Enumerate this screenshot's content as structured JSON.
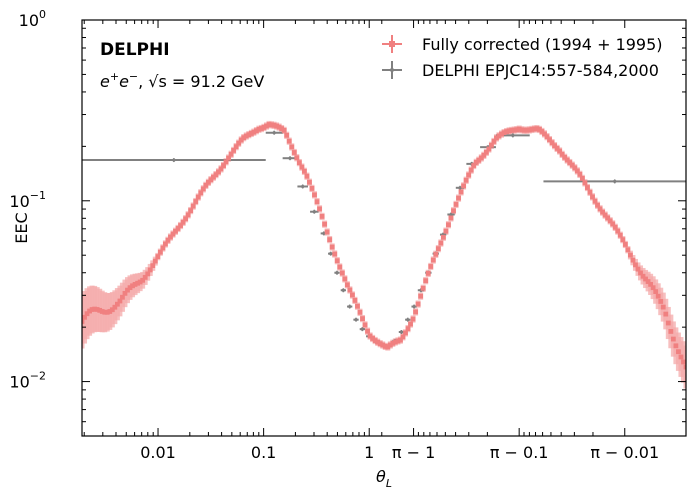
{
  "chart_data": {
    "type": "scatter",
    "xlabel": "θL",
    "ylabel": "EEC",
    "xscale": "symmetric-log about π/2 (θ below 1, π−θ above)",
    "ylim": [
      0.005,
      1
    ],
    "yscale": "log",
    "y_ticks": [
      {
        "value": 0.01,
        "base": "10",
        "exp": "−2"
      },
      {
        "value": 0.1,
        "base": "10",
        "exp": "−1"
      },
      {
        "value": 1,
        "base": "10",
        "exp": "0"
      }
    ],
    "x_ticks": [
      {
        "u": -2,
        "label": "0.01"
      },
      {
        "u": -1,
        "label": "0.1"
      },
      {
        "u": 0,
        "label": "1"
      },
      {
        "u": 0.42,
        "label": "π − 1"
      },
      {
        "u": 1.42,
        "label": "π − 0.1"
      },
      {
        "u": 2.42,
        "label": "π − 0.01"
      }
    ],
    "annotations": {
      "experiment": "DELPHI",
      "process_prefix": "e",
      "process_sqrt": "√s",
      "process_suffix": " = 91.2 GeV"
    },
    "legend": {
      "position": "top-right",
      "entries": [
        "Fully corrected (1994 + 1995)",
        "DELPHI EPJC14:557-584,2000"
      ]
    },
    "series": [
      {
        "name": "Fully corrected (1994 + 1995)",
        "color": "#f08080",
        "band_color": "#f4aaaa",
        "shape_u": [
          -2.72,
          -2.55,
          -2.35,
          -2.15,
          -1.95,
          -1.75,
          -1.55,
          -1.35,
          -1.2,
          -1.05,
          -0.95,
          -0.8,
          -0.6,
          -0.4,
          -0.2,
          0.0,
          0.17,
          0.3,
          0.42,
          0.6,
          0.8,
          1.0,
          1.2,
          1.42,
          1.6,
          1.8,
          2.0,
          2.2,
          2.42,
          2.6,
          2.8,
          3.0
        ],
        "shape_y": [
          0.0215,
          0.0245,
          0.028,
          0.037,
          0.054,
          0.08,
          0.118,
          0.17,
          0.215,
          0.255,
          0.265,
          0.24,
          0.142,
          0.068,
          0.033,
          0.0185,
          0.0151,
          0.017,
          0.023,
          0.045,
          0.09,
          0.16,
          0.22,
          0.255,
          0.245,
          0.195,
          0.135,
          0.09,
          0.058,
          0.038,
          0.025,
          0.0115
        ],
        "n_points": 240,
        "u_range": [
          -2.72,
          3.0
        ]
      },
      {
        "name": "DELPHI EPJC14:557-584,2000",
        "color": "#808080",
        "points": [
          {
            "x0": -2.72,
            "x1": -0.98,
            "y": 0.168
          },
          {
            "x0": -0.98,
            "x1": -0.82,
            "y": 0.238
          },
          {
            "x0": -0.82,
            "x1": -0.68,
            "y": 0.172
          },
          {
            "x0": -0.68,
            "x1": -0.58,
            "y": 0.12
          },
          {
            "x0": -0.56,
            "x1": -0.48,
            "y": 0.087
          },
          {
            "x0": -0.46,
            "x1": -0.4,
            "y": 0.066
          },
          {
            "x0": -0.39,
            "x1": -0.34,
            "y": 0.051
          },
          {
            "x0": -0.33,
            "x1": -0.28,
            "y": 0.04
          },
          {
            "x0": -0.27,
            "x1": -0.22,
            "y": 0.032
          },
          {
            "x0": -0.21,
            "x1": -0.16,
            "y": 0.026
          },
          {
            "x0": -0.15,
            "x1": -0.1,
            "y": 0.022
          },
          {
            "x0": -0.09,
            "x1": -0.04,
            "y": 0.0195
          },
          {
            "x0": -0.03,
            "x1": 0.03,
            "y": 0.0178
          },
          {
            "x0": 0.04,
            "x1": 0.09,
            "y": 0.0166
          },
          {
            "x0": 0.1,
            "x1": 0.15,
            "y": 0.016
          },
          {
            "x0": 0.16,
            "x1": 0.21,
            "y": 0.0157
          },
          {
            "x0": 0.22,
            "x1": 0.27,
            "y": 0.0168
          },
          {
            "x0": 0.28,
            "x1": 0.33,
            "y": 0.0188
          },
          {
            "x0": 0.34,
            "x1": 0.39,
            "y": 0.022
          },
          {
            "x0": 0.4,
            "x1": 0.45,
            "y": 0.026
          },
          {
            "x0": 0.46,
            "x1": 0.52,
            "y": 0.032
          },
          {
            "x0": 0.53,
            "x1": 0.59,
            "y": 0.04
          },
          {
            "x0": 0.6,
            "x1": 0.66,
            "y": 0.051
          },
          {
            "x0": 0.67,
            "x1": 0.73,
            "y": 0.065
          },
          {
            "x0": 0.74,
            "x1": 0.81,
            "y": 0.084
          },
          {
            "x0": 0.82,
            "x1": 0.9,
            "y": 0.118
          },
          {
            "x0": 0.92,
            "x1": 1.02,
            "y": 0.16
          },
          {
            "x0": 1.05,
            "x1": 1.2,
            "y": 0.198
          },
          {
            "x0": 1.2,
            "x1": 1.52,
            "y": 0.23
          },
          {
            "x0": 1.65,
            "x1": 3.0,
            "y": 0.128
          }
        ]
      }
    ]
  }
}
